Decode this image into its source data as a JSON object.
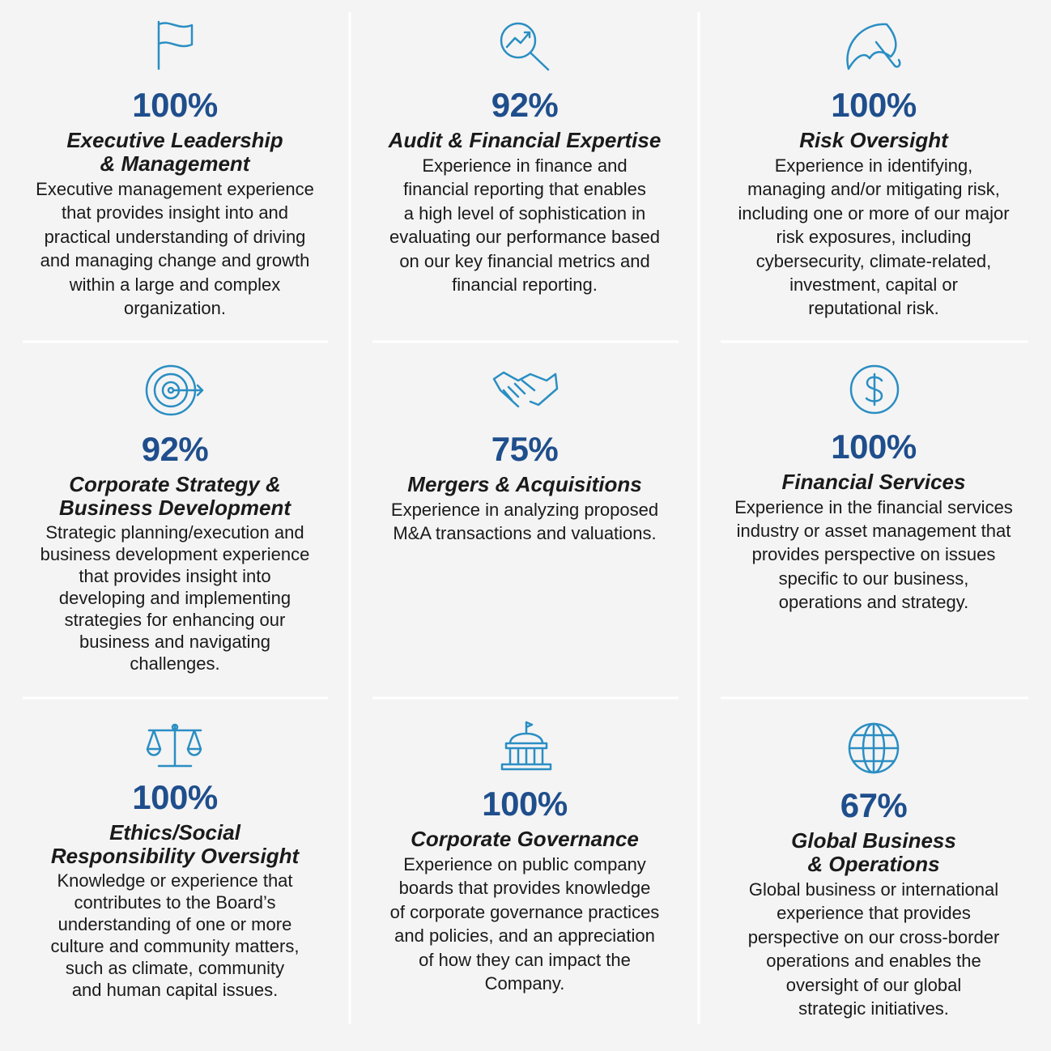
{
  "cards": [
    {
      "percent": "100%",
      "title": [
        "Executive Leadership",
        "& Management"
      ],
      "description": [
        "Executive management experience",
        "that provides insight into and",
        "practical understanding of driving",
        "and managing change and growth",
        "within a large and complex",
        "organization."
      ]
    },
    {
      "percent": "92%",
      "title": [
        "Audit & Financial Expertise"
      ],
      "description": [
        "Experience in finance and",
        "financial reporting that enables",
        "a high level of sophistication in",
        "evaluating our performance based",
        "on our key financial metrics and",
        "financial reporting."
      ]
    },
    {
      "percent": "100%",
      "title": [
        "Risk Oversight"
      ],
      "description": [
        "Experience in identifying,",
        "managing and/or mitigating risk,",
        "including one or more of our major",
        "risk exposures, including",
        "cybersecurity, climate-related,",
        "investment, capital or",
        "reputational risk."
      ]
    },
    {
      "percent": "92%",
      "title": [
        "Corporate Strategy &",
        "Business Development"
      ],
      "description": [
        "Strategic planning/execution and",
        "business development experience",
        "that provides insight into",
        "developing and implementing",
        "strategies for enhancing our",
        "business and navigating",
        "challenges."
      ]
    },
    {
      "percent": "75%",
      "title": [
        "Mergers & Acquisitions"
      ],
      "description": [
        "Experience in analyzing proposed",
        "M&A transactions and valuations."
      ]
    },
    {
      "percent": "100%",
      "title": [
        "Financial Services"
      ],
      "description": [
        "Experience in the financial services",
        "industry or asset management that",
        "provides perspective on issues",
        "specific to our business,",
        "operations and strategy."
      ]
    },
    {
      "percent": "100%",
      "title": [
        "Ethics/Social",
        "Responsibility Oversight"
      ],
      "description": [
        "Knowledge or experience that",
        "contributes to the Board’s",
        "understanding of one or more",
        "culture and community matters,",
        "such as climate, community",
        "and human capital issues."
      ]
    },
    {
      "percent": "100%",
      "title": [
        "Corporate Governance"
      ],
      "description": [
        "Experience on public company",
        "boards that provides knowledge",
        "of corporate governance practices",
        "and policies, and an appreciation",
        "of how they can impact the",
        "Company."
      ]
    },
    {
      "percent": "67%",
      "title": [
        "Global Business",
        "& Operations"
      ],
      "description": [
        "Global business or international",
        "experience that provides",
        "perspective on our cross-border",
        "operations and enables the",
        "oversight of our global",
        "strategic initiatives."
      ]
    }
  ]
}
